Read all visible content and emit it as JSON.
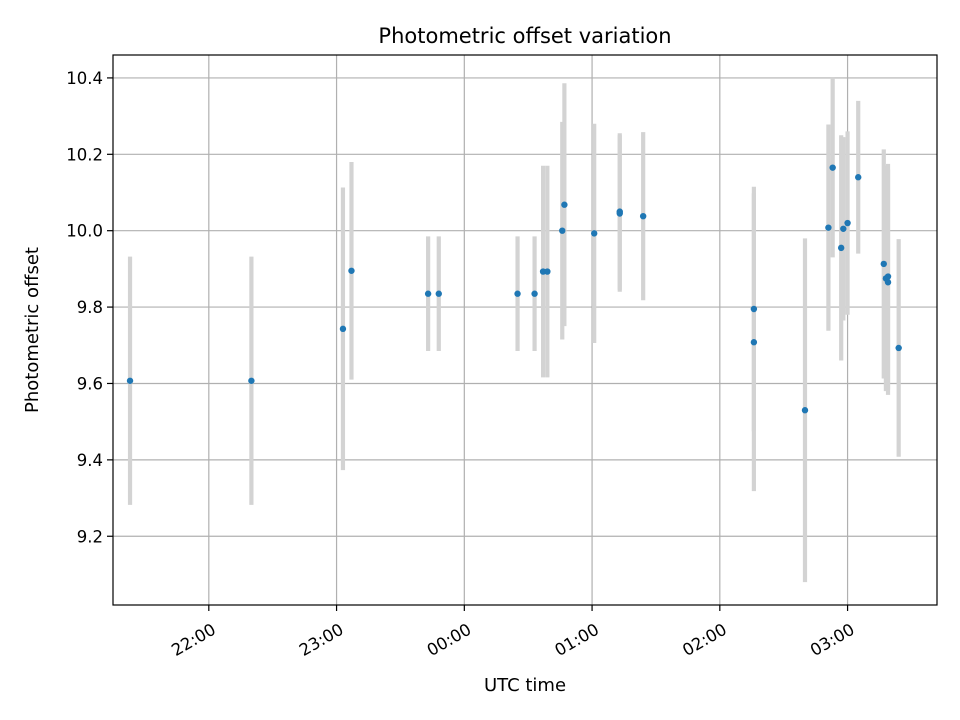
{
  "chart_data": {
    "type": "scatter",
    "title": "Photometric offset variation",
    "xlabel": "UTC time",
    "ylabel": "Photometric offset",
    "xlim": [
      "21:15",
      "03:42"
    ],
    "ylim": [
      9.02,
      10.46
    ],
    "xticks": [
      "22:00",
      "23:00",
      "00:00",
      "01:00",
      "02:00",
      "03:00"
    ],
    "yticks": [
      "9.2",
      "9.4",
      "9.6",
      "9.8",
      "10.0",
      "10.2",
      "10.4"
    ],
    "grid": true,
    "point_color": "#1f77b4",
    "errorbar_color": "#d3d3d3",
    "points": [
      {
        "x": "21:23",
        "y": 9.607,
        "err": 0.325
      },
      {
        "x": "22:20",
        "y": 9.607,
        "err": 0.325
      },
      {
        "x": "23:03",
        "y": 9.743,
        "err": 0.37
      },
      {
        "x": "23:07",
        "y": 9.895,
        "err": 0.285
      },
      {
        "x": "23:43",
        "y": 9.835,
        "err": 0.15
      },
      {
        "x": "23:48",
        "y": 9.835,
        "err": 0.15
      },
      {
        "x": "00:25",
        "y": 9.835,
        "err": 0.15
      },
      {
        "x": "00:33",
        "y": 9.835,
        "err": 0.15
      },
      {
        "x": "00:37",
        "y": 9.893,
        "err": 0.277
      },
      {
        "x": "00:39",
        "y": 9.893,
        "err": 0.277
      },
      {
        "x": "00:46",
        "y": 10.0,
        "err": 0.285
      },
      {
        "x": "00:47",
        "y": 10.068,
        "err": 0.318
      },
      {
        "x": "01:01",
        "y": 9.993,
        "err": 0.287
      },
      {
        "x": "01:13",
        "y": 10.05,
        "err": 0.205
      },
      {
        "x": "01:13",
        "y": 10.045,
        "err": 0.205
      },
      {
        "x": "01:24",
        "y": 10.038,
        "err": 0.22
      },
      {
        "x": "02:16",
        "y": 9.795,
        "err": 0.32
      },
      {
        "x": "02:16",
        "y": 9.708,
        "err": 0.39
      },
      {
        "x": "02:40",
        "y": 9.53,
        "err": 0.45
      },
      {
        "x": "02:51",
        "y": 10.008,
        "err": 0.27
      },
      {
        "x": "02:53",
        "y": 10.165,
        "err": 0.235
      },
      {
        "x": "02:57",
        "y": 9.955,
        "err": 0.295
      },
      {
        "x": "02:58",
        "y": 10.005,
        "err": 0.24
      },
      {
        "x": "03:00",
        "y": 10.02,
        "err": 0.24
      },
      {
        "x": "03:05",
        "y": 10.14,
        "err": 0.2
      },
      {
        "x": "03:17",
        "y": 9.913,
        "err": 0.3
      },
      {
        "x": "03:18",
        "y": 9.875,
        "err": 0.295
      },
      {
        "x": "03:19",
        "y": 9.88,
        "err": 0.295
      },
      {
        "x": "03:19",
        "y": 9.865,
        "err": 0.295
      },
      {
        "x": "03:24",
        "y": 9.693,
        "err": 0.285
      }
    ]
  }
}
